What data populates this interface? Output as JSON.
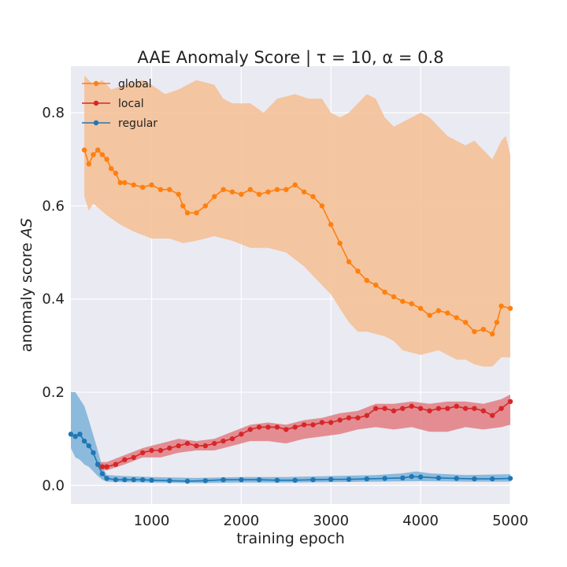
{
  "chart_data": {
    "type": "line",
    "title": "AAE Anomaly Score | τ = 10, α = 0.8",
    "xlabel": "training epoch",
    "ylabel_prefix": "anomaly score ",
    "ylabel_var": "AS",
    "xlim": [
      100,
      5000
    ],
    "ylim": [
      -0.04,
      0.9
    ],
    "xticks": [
      1000,
      2000,
      3000,
      4000,
      5000
    ],
    "yticks": [
      0.0,
      0.2,
      0.4,
      0.6,
      0.8
    ],
    "xtick_labels": [
      "1000",
      "2000",
      "3000",
      "4000",
      "5000"
    ],
    "ytick_labels": [
      "0.0",
      "0.2",
      "0.4",
      "0.6",
      "0.8"
    ],
    "grid": true,
    "legend_position": "top-left",
    "series": [
      {
        "name": "global",
        "color": "#ff7f0e",
        "band_color": "#f5be92",
        "points": [
          [
            250,
            0.72
          ],
          [
            300,
            0.69
          ],
          [
            350,
            0.71
          ],
          [
            400,
            0.72
          ],
          [
            450,
            0.71
          ],
          [
            500,
            0.7
          ],
          [
            550,
            0.68
          ],
          [
            600,
            0.67
          ],
          [
            650,
            0.65
          ],
          [
            700,
            0.65
          ],
          [
            800,
            0.645
          ],
          [
            900,
            0.64
          ],
          [
            1000,
            0.645
          ],
          [
            1100,
            0.635
          ],
          [
            1200,
            0.635
          ],
          [
            1300,
            0.625
          ],
          [
            1350,
            0.6
          ],
          [
            1400,
            0.585
          ],
          [
            1500,
            0.585
          ],
          [
            1600,
            0.6
          ],
          [
            1700,
            0.62
          ],
          [
            1800,
            0.635
          ],
          [
            1900,
            0.63
          ],
          [
            2000,
            0.625
          ],
          [
            2100,
            0.635
          ],
          [
            2200,
            0.625
          ],
          [
            2300,
            0.63
          ],
          [
            2400,
            0.635
          ],
          [
            2500,
            0.635
          ],
          [
            2600,
            0.645
          ],
          [
            2700,
            0.63
          ],
          [
            2800,
            0.62
          ],
          [
            2900,
            0.6
          ],
          [
            3000,
            0.56
          ],
          [
            3100,
            0.52
          ],
          [
            3200,
            0.48
          ],
          [
            3300,
            0.46
          ],
          [
            3400,
            0.44
          ],
          [
            3500,
            0.43
          ],
          [
            3600,
            0.415
          ],
          [
            3700,
            0.405
          ],
          [
            3800,
            0.395
          ],
          [
            3900,
            0.39
          ],
          [
            4000,
            0.38
          ],
          [
            4100,
            0.365
          ],
          [
            4200,
            0.375
          ],
          [
            4300,
            0.37
          ],
          [
            4400,
            0.36
          ],
          [
            4500,
            0.35
          ],
          [
            4600,
            0.33
          ],
          [
            4700,
            0.335
          ],
          [
            4800,
            0.325
          ],
          [
            4850,
            0.35
          ],
          [
            4900,
            0.385
          ],
          [
            5000,
            0.38
          ]
        ],
        "band_upper": [
          [
            250,
            0.88
          ],
          [
            350,
            0.86
          ],
          [
            450,
            0.87
          ],
          [
            550,
            0.85
          ],
          [
            700,
            0.86
          ],
          [
            900,
            0.87
          ],
          [
            1000,
            0.86
          ],
          [
            1150,
            0.84
          ],
          [
            1300,
            0.85
          ],
          [
            1500,
            0.87
          ],
          [
            1700,
            0.86
          ],
          [
            1800,
            0.83
          ],
          [
            1900,
            0.82
          ],
          [
            2100,
            0.82
          ],
          [
            2250,
            0.8
          ],
          [
            2400,
            0.83
          ],
          [
            2600,
            0.84
          ],
          [
            2750,
            0.83
          ],
          [
            2900,
            0.83
          ],
          [
            3000,
            0.8
          ],
          [
            3100,
            0.79
          ],
          [
            3200,
            0.8
          ],
          [
            3300,
            0.82
          ],
          [
            3400,
            0.84
          ],
          [
            3500,
            0.83
          ],
          [
            3600,
            0.79
          ],
          [
            3700,
            0.77
          ],
          [
            3800,
            0.78
          ],
          [
            3900,
            0.79
          ],
          [
            4000,
            0.8
          ],
          [
            4100,
            0.79
          ],
          [
            4200,
            0.77
          ],
          [
            4300,
            0.75
          ],
          [
            4400,
            0.74
          ],
          [
            4500,
            0.73
          ],
          [
            4600,
            0.74
          ],
          [
            4700,
            0.72
          ],
          [
            4800,
            0.7
          ],
          [
            4900,
            0.74
          ],
          [
            4950,
            0.75
          ],
          [
            5000,
            0.71
          ]
        ],
        "band_lower": [
          [
            250,
            0.62
          ],
          [
            300,
            0.59
          ],
          [
            350,
            0.605
          ],
          [
            500,
            0.58
          ],
          [
            650,
            0.56
          ],
          [
            800,
            0.545
          ],
          [
            1000,
            0.53
          ],
          [
            1200,
            0.53
          ],
          [
            1350,
            0.52
          ],
          [
            1500,
            0.525
          ],
          [
            1700,
            0.535
          ],
          [
            1900,
            0.525
          ],
          [
            2100,
            0.51
          ],
          [
            2300,
            0.51
          ],
          [
            2500,
            0.5
          ],
          [
            2700,
            0.47
          ],
          [
            2800,
            0.45
          ],
          [
            2900,
            0.43
          ],
          [
            3000,
            0.41
          ],
          [
            3100,
            0.38
          ],
          [
            3200,
            0.35
          ],
          [
            3300,
            0.33
          ],
          [
            3400,
            0.33
          ],
          [
            3500,
            0.325
          ],
          [
            3600,
            0.32
          ],
          [
            3700,
            0.31
          ],
          [
            3800,
            0.29
          ],
          [
            3900,
            0.285
          ],
          [
            4000,
            0.28
          ],
          [
            4100,
            0.285
          ],
          [
            4200,
            0.29
          ],
          [
            4300,
            0.28
          ],
          [
            4400,
            0.27
          ],
          [
            4500,
            0.27
          ],
          [
            4600,
            0.26
          ],
          [
            4700,
            0.255
          ],
          [
            4800,
            0.255
          ],
          [
            4850,
            0.265
          ],
          [
            4900,
            0.275
          ],
          [
            5000,
            0.275
          ]
        ]
      },
      {
        "name": "local",
        "color": "#d62728",
        "band_color": "#e27c82",
        "points": [
          [
            400,
            0.045
          ],
          [
            450,
            0.04
          ],
          [
            500,
            0.04
          ],
          [
            600,
            0.045
          ],
          [
            700,
            0.055
          ],
          [
            800,
            0.06
          ],
          [
            900,
            0.07
          ],
          [
            1000,
            0.075
          ],
          [
            1100,
            0.075
          ],
          [
            1200,
            0.08
          ],
          [
            1300,
            0.085
          ],
          [
            1400,
            0.09
          ],
          [
            1500,
            0.085
          ],
          [
            1600,
            0.085
          ],
          [
            1700,
            0.09
          ],
          [
            1800,
            0.095
          ],
          [
            1900,
            0.1
          ],
          [
            2000,
            0.11
          ],
          [
            2100,
            0.12
          ],
          [
            2200,
            0.125
          ],
          [
            2300,
            0.125
          ],
          [
            2400,
            0.125
          ],
          [
            2500,
            0.12
          ],
          [
            2600,
            0.125
          ],
          [
            2700,
            0.13
          ],
          [
            2800,
            0.13
          ],
          [
            2900,
            0.135
          ],
          [
            3000,
            0.135
          ],
          [
            3100,
            0.14
          ],
          [
            3200,
            0.145
          ],
          [
            3300,
            0.145
          ],
          [
            3400,
            0.15
          ],
          [
            3500,
            0.165
          ],
          [
            3600,
            0.165
          ],
          [
            3700,
            0.16
          ],
          [
            3800,
            0.165
          ],
          [
            3900,
            0.17
          ],
          [
            4000,
            0.165
          ],
          [
            4100,
            0.16
          ],
          [
            4200,
            0.165
          ],
          [
            4300,
            0.165
          ],
          [
            4400,
            0.17
          ],
          [
            4500,
            0.165
          ],
          [
            4600,
            0.165
          ],
          [
            4700,
            0.16
          ],
          [
            4800,
            0.15
          ],
          [
            4900,
            0.165
          ],
          [
            5000,
            0.18
          ]
        ],
        "band_upper": [
          [
            400,
            0.05
          ],
          [
            500,
            0.05
          ],
          [
            700,
            0.065
          ],
          [
            900,
            0.08
          ],
          [
            1100,
            0.09
          ],
          [
            1300,
            0.1
          ],
          [
            1500,
            0.095
          ],
          [
            1700,
            0.1
          ],
          [
            1900,
            0.115
          ],
          [
            2100,
            0.13
          ],
          [
            2300,
            0.135
          ],
          [
            2500,
            0.13
          ],
          [
            2700,
            0.14
          ],
          [
            2900,
            0.145
          ],
          [
            3100,
            0.155
          ],
          [
            3300,
            0.16
          ],
          [
            3500,
            0.175
          ],
          [
            3700,
            0.175
          ],
          [
            3900,
            0.18
          ],
          [
            4100,
            0.175
          ],
          [
            4300,
            0.18
          ],
          [
            4500,
            0.18
          ],
          [
            4700,
            0.175
          ],
          [
            4900,
            0.185
          ],
          [
            5000,
            0.195
          ]
        ],
        "band_lower": [
          [
            400,
            0.035
          ],
          [
            500,
            0.032
          ],
          [
            700,
            0.045
          ],
          [
            900,
            0.06
          ],
          [
            1100,
            0.06
          ],
          [
            1300,
            0.07
          ],
          [
            1500,
            0.075
          ],
          [
            1700,
            0.075
          ],
          [
            1900,
            0.085
          ],
          [
            2100,
            0.095
          ],
          [
            2300,
            0.095
          ],
          [
            2500,
            0.09
          ],
          [
            2700,
            0.1
          ],
          [
            2900,
            0.105
          ],
          [
            3100,
            0.11
          ],
          [
            3300,
            0.12
          ],
          [
            3500,
            0.125
          ],
          [
            3700,
            0.12
          ],
          [
            3900,
            0.125
          ],
          [
            4100,
            0.115
          ],
          [
            4300,
            0.115
          ],
          [
            4500,
            0.125
          ],
          [
            4700,
            0.12
          ],
          [
            4900,
            0.125
          ],
          [
            5000,
            0.13
          ]
        ]
      },
      {
        "name": "regular",
        "color": "#1f77b4",
        "band_color": "#7ab1d8",
        "points": [
          [
            100,
            0.11
          ],
          [
            150,
            0.105
          ],
          [
            200,
            0.11
          ],
          [
            250,
            0.095
          ],
          [
            300,
            0.085
          ],
          [
            350,
            0.07
          ],
          [
            400,
            0.045
          ],
          [
            450,
            0.025
          ],
          [
            500,
            0.015
          ],
          [
            600,
            0.012
          ],
          [
            700,
            0.012
          ],
          [
            800,
            0.012
          ],
          [
            900,
            0.012
          ],
          [
            1000,
            0.011
          ],
          [
            1200,
            0.01
          ],
          [
            1400,
            0.009
          ],
          [
            1600,
            0.01
          ],
          [
            1800,
            0.012
          ],
          [
            2000,
            0.012
          ],
          [
            2200,
            0.012
          ],
          [
            2400,
            0.011
          ],
          [
            2600,
            0.011
          ],
          [
            2800,
            0.012
          ],
          [
            3000,
            0.013
          ],
          [
            3200,
            0.013
          ],
          [
            3400,
            0.014
          ],
          [
            3600,
            0.015
          ],
          [
            3800,
            0.016
          ],
          [
            3900,
            0.019
          ],
          [
            4000,
            0.018
          ],
          [
            4200,
            0.016
          ],
          [
            4400,
            0.015
          ],
          [
            4600,
            0.014
          ],
          [
            4800,
            0.014
          ],
          [
            5000,
            0.015
          ]
        ],
        "band_upper": [
          [
            100,
            0.2
          ],
          [
            150,
            0.2
          ],
          [
            200,
            0.185
          ],
          [
            250,
            0.17
          ],
          [
            300,
            0.14
          ],
          [
            400,
            0.075
          ],
          [
            450,
            0.04
          ],
          [
            500,
            0.022
          ],
          [
            700,
            0.02
          ],
          [
            1000,
            0.018
          ],
          [
            1500,
            0.016
          ],
          [
            2000,
            0.018
          ],
          [
            2500,
            0.018
          ],
          [
            3000,
            0.02
          ],
          [
            3500,
            0.022
          ],
          [
            3800,
            0.026
          ],
          [
            3950,
            0.03
          ],
          [
            4100,
            0.026
          ],
          [
            4500,
            0.022
          ],
          [
            5000,
            0.024
          ]
        ],
        "band_lower": [
          [
            100,
            0.08
          ],
          [
            150,
            0.06
          ],
          [
            200,
            0.055
          ],
          [
            250,
            0.045
          ],
          [
            300,
            0.04
          ],
          [
            400,
            0.02
          ],
          [
            450,
            0.012
          ],
          [
            500,
            0.008
          ],
          [
            700,
            0.007
          ],
          [
            1000,
            0.006
          ],
          [
            1500,
            0.005
          ],
          [
            2000,
            0.006
          ],
          [
            2500,
            0.006
          ],
          [
            3000,
            0.007
          ],
          [
            3500,
            0.008
          ],
          [
            4000,
            0.009
          ],
          [
            4500,
            0.008
          ],
          [
            5000,
            0.008
          ]
        ]
      }
    ]
  }
}
